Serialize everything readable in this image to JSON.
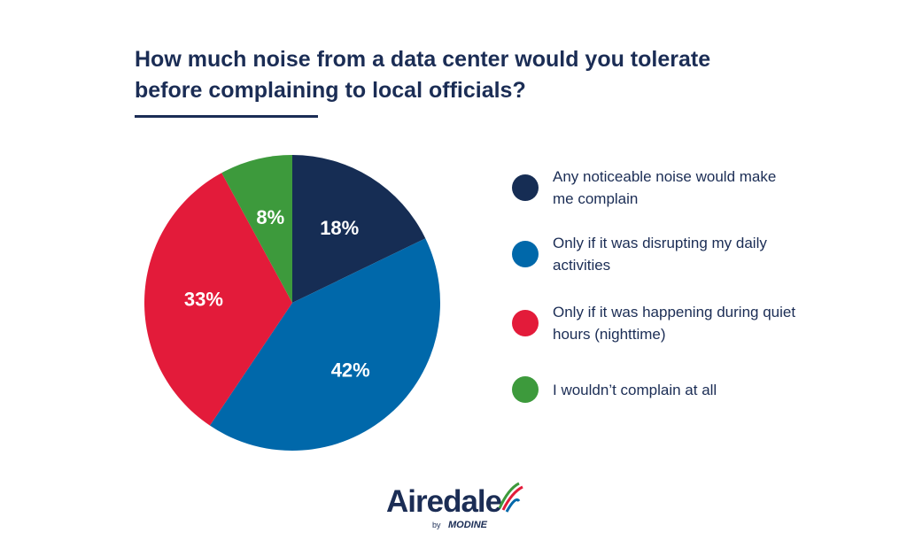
{
  "chart_data": {
    "type": "pie",
    "title": "How much noise from a data center would you tolerate before complaining to local officials?",
    "legend_position": "right",
    "slices": [
      {
        "label": "Any noticeable noise would make me complain",
        "value": 18,
        "display": "18%",
        "color": "#162d54"
      },
      {
        "label": "Only if it was disrupting my daily activities",
        "value": 42,
        "display": "42%",
        "color": "#0068aa"
      },
      {
        "label": "Only if it was happening during quiet hours (nighttime)",
        "value": 33,
        "display": "33%",
        "color": "#e31b3a"
      },
      {
        "label": "I wouldn’t complain at all",
        "value": 8,
        "display": "8%",
        "color": "#3d9a3c"
      }
    ]
  },
  "logo": {
    "name": "Airedale",
    "byline": "by",
    "parent": "MODINE"
  }
}
